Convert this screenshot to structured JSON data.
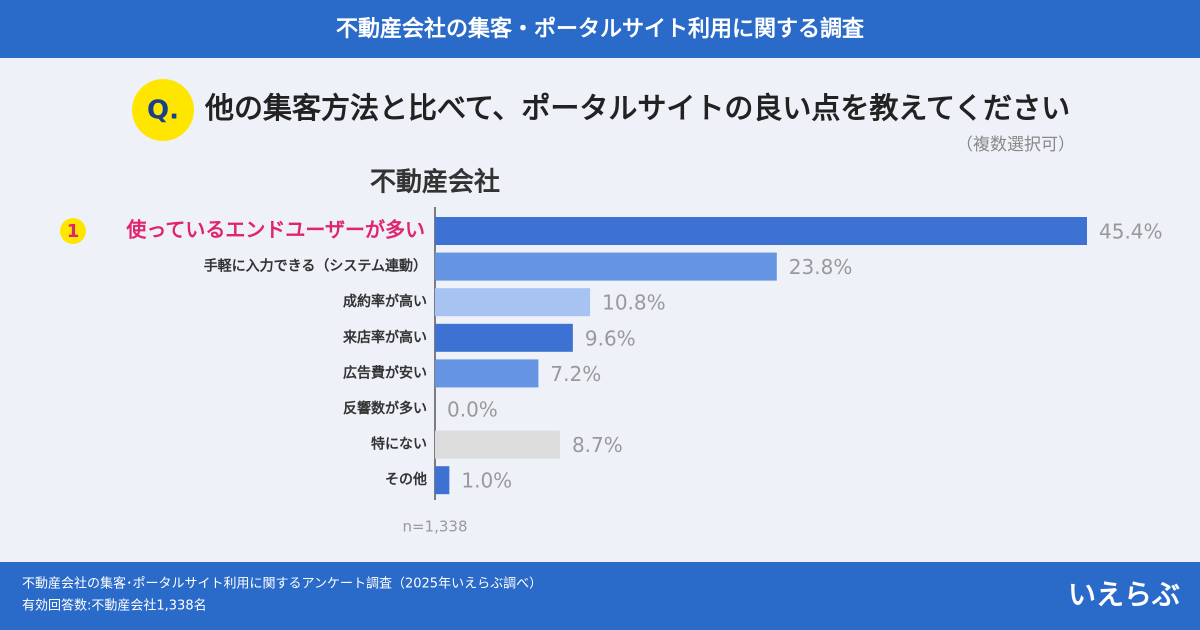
{
  "header": {
    "title": "不動産会社の集客・ポータルサイト利用に関する調査"
  },
  "question": {
    "label": "Q.",
    "text": "他の集客方法と比べて、ポータルサイトの良い点を教えてください",
    "note": "（複数選択可）"
  },
  "chart_data": {
    "type": "hbar",
    "title": "不動産会社",
    "rank_label": "1",
    "categories": [
      "使っているエンドユーザーが多い",
      "手軽に入力できる（システム連動）",
      "成約率が高い",
      "来店率が高い",
      "広告費が安い",
      "反響数が多い",
      "特にない",
      "その他"
    ],
    "values": [
      45.4,
      23.8,
      10.8,
      9.6,
      7.2,
      0.0,
      8.7,
      1.0
    ],
    "value_labels": [
      "45.4%",
      "23.8%",
      "10.8%",
      "9.6%",
      "7.2%",
      "0.0%",
      "8.7%",
      "1.0%"
    ],
    "colors": [
      "#3d72d3",
      "#6494e2",
      "#a6c3f2",
      "#3d72d3",
      "#6494e2",
      "#6494e2",
      "#dcdcdc",
      "#3d72d3"
    ],
    "note": "n=1,338"
  },
  "footer": {
    "lines": [
      "不動産会社の集客･ポータルサイト利用に関するアンケート調査（2025年いえらぶ調べ）",
      "有効回答数:不動産会社1,338名"
    ],
    "logo": "いえらぶ"
  }
}
